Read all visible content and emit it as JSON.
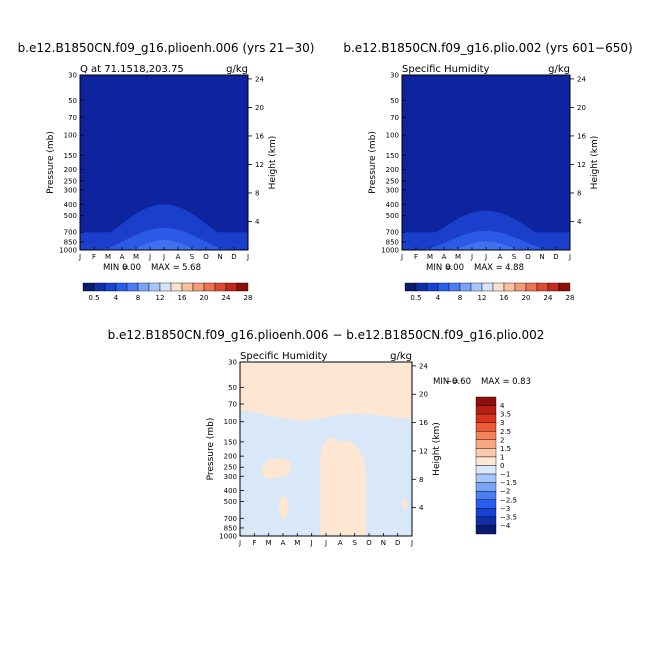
{
  "chart_data": [
    {
      "type": "heatmap",
      "title": "b.e12.B1850CN.f09_g16.plioenh.006 (yrs 21−30)",
      "subtitle_left": "Q at 71.1518,203.75",
      "subtitle_right": "g/kg",
      "xlabel": "",
      "ylabel": "Pressure (mb)",
      "ylabel_right": "Height (km)",
      "x_categories": [
        "J",
        "F",
        "M",
        "A",
        "M",
        "J",
        "J",
        "A",
        "S",
        "O",
        "N",
        "D",
        "J"
      ],
      "y_ticks": [
        "30",
        "50",
        "70",
        "100",
        "150",
        "200",
        "250",
        "300",
        "400",
        "500",
        "700",
        "850",
        "1000"
      ],
      "height_ticks": [
        "24",
        "20",
        "16",
        "12",
        "8",
        "4"
      ],
      "stats": {
        "min_label": "MIN =",
        "min": "0.00",
        "max_label": "MAX =",
        "max": "5.68"
      },
      "colorbar_labels": [
        "0.5",
        "4",
        "8",
        "12",
        "16",
        "20",
        "24",
        "28"
      ],
      "max_value": 5.68
    },
    {
      "type": "heatmap",
      "title": "b.e12.B1850CN.f09_g16.plio.002 (yrs 601−650)",
      "subtitle_left": "Specific Humidity",
      "subtitle_right": "g/kg",
      "xlabel": "",
      "ylabel": "Pressure (mb)",
      "ylabel_right": "Height (km)",
      "x_categories": [
        "J",
        "F",
        "M",
        "A",
        "M",
        "J",
        "J",
        "A",
        "S",
        "O",
        "N",
        "D",
        "J"
      ],
      "y_ticks": [
        "30",
        "50",
        "70",
        "100",
        "150",
        "200",
        "250",
        "300",
        "400",
        "500",
        "700",
        "850",
        "1000"
      ],
      "height_ticks": [
        "24",
        "20",
        "16",
        "12",
        "8",
        "4"
      ],
      "stats": {
        "min_label": "MIN =",
        "min": "0.00",
        "max_label": "MAX =",
        "max": "4.88"
      },
      "colorbar_labels": [
        "0.5",
        "4",
        "8",
        "12",
        "16",
        "20",
        "24",
        "28"
      ],
      "max_value": 4.88
    },
    {
      "type": "heatmap",
      "title": "b.e12.B1850CN.f09_g16.plioenh.006 − b.e12.B1850CN.f09_g16.plio.002",
      "subtitle_left": "Specific Humidity",
      "subtitle_right": "g/kg",
      "xlabel": "",
      "ylabel": "Pressure (mb)",
      "ylabel_right": "Height (km)",
      "x_categories": [
        "J",
        "F",
        "M",
        "A",
        "M",
        "J",
        "J",
        "A",
        "S",
        "O",
        "N",
        "D",
        "J"
      ],
      "y_ticks": [
        "30",
        "50",
        "70",
        "100",
        "150",
        "200",
        "250",
        "300",
        "400",
        "500",
        "700",
        "850",
        "1000"
      ],
      "height_ticks": [
        "24",
        "20",
        "16",
        "12",
        "8",
        "4"
      ],
      "stats": {
        "min_label": "MIN =",
        "min": "−0.60",
        "max_label": "MAX =",
        "max": "0.83"
      },
      "colorbar_labels": [
        "4",
        "3.5",
        "3",
        "2.5",
        "2",
        "1.5",
        "1",
        "0",
        "−1",
        "−1.5",
        "−2",
        "−2.5",
        "−3",
        "−3.5",
        "−4"
      ]
    }
  ],
  "colors": {
    "base_blue": "#0d249e",
    "blue_2": "#1a3fcc",
    "blue_3": "#2b5ae6",
    "blue_4": "#3f72f0",
    "diff_pos": "#fde6d2",
    "diff_neg": "#d8e8f8",
    "top_colorbar": [
      "#0a1a6e",
      "#0f2fa8",
      "#1842d6",
      "#2a5ef0",
      "#4a7ef5",
      "#7aa4f7",
      "#a9c6fa",
      "#d4e4fb",
      "#fbe1cc",
      "#f9c0a0",
      "#f59a74",
      "#ef7350",
      "#e14a32",
      "#c42818",
      "#8f0d0a"
    ],
    "diff_colorbar": [
      "#8f0d0a",
      "#b51e12",
      "#d9341c",
      "#ef5a34",
      "#f5825a",
      "#f8a884",
      "#fbc9ad",
      "#fde6d2",
      "#d8e8f8",
      "#a9c6fa",
      "#7aa4f7",
      "#4a7ef5",
      "#2a5ef0",
      "#1842d6",
      "#0f2fa8",
      "#0a1a6e"
    ]
  }
}
